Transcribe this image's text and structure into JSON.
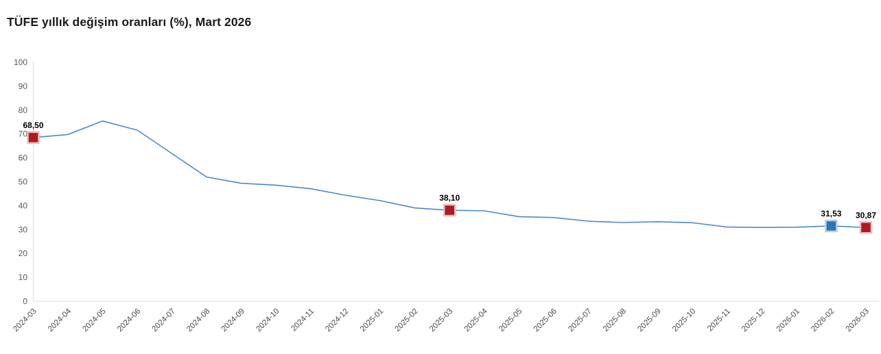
{
  "chart_data": {
    "type": "line",
    "title": "TÜFE yıllık değişim oranları (%), Mart 2026",
    "xlabel": "",
    "ylabel": "",
    "ylim": [
      0,
      100
    ],
    "y_ticks": [
      0,
      10,
      20,
      30,
      40,
      50,
      60,
      70,
      80,
      90,
      100
    ],
    "grid": "off",
    "legend": "off",
    "categories": [
      "2024-03",
      "2024-04",
      "2024-05",
      "2024-06",
      "2024-07",
      "2024-08",
      "2024-09",
      "2024-10",
      "2024-11",
      "2024-12",
      "2025-01",
      "2025-02",
      "2025-03",
      "2025-04",
      "2025-05",
      "2025-06",
      "2025-07",
      "2025-08",
      "2025-09",
      "2025-10",
      "2025-11",
      "2025-12",
      "2026-01",
      "2026-02",
      "2026-03"
    ],
    "series": [
      {
        "name": "TÜFE yıllık değişim (%)",
        "values": [
          68.5,
          69.8,
          75.45,
          71.6,
          61.78,
          51.97,
          49.38,
          48.58,
          47.09,
          44.38,
          42.12,
          39.05,
          38.1,
          37.86,
          35.41,
          35.05,
          33.52,
          32.95,
          33.29,
          32.87,
          31.07,
          30.9,
          31.0,
          31.53,
          30.87
        ]
      }
    ],
    "annotations": [
      {
        "index": 0,
        "label": "68,50",
        "marker": "red"
      },
      {
        "index": 12,
        "label": "38,10",
        "marker": "red"
      },
      {
        "index": 23,
        "label": "31,53",
        "marker": "blue"
      },
      {
        "index": 24,
        "label": "30,87",
        "marker": "red"
      }
    ],
    "colors": {
      "line": "#4a89c6",
      "marker_red": "#b01a20",
      "marker_red_border": "#e8bfc1",
      "marker_blue": "#2e74b5",
      "marker_blue_border": "#b7d0ea",
      "axis_line": "#d9dee6",
      "y_tick_label": "#54585c",
      "x_tick_label": "#46494d",
      "title": "#191b1e",
      "annotation": "#000000",
      "background": "#ffffff"
    }
  }
}
